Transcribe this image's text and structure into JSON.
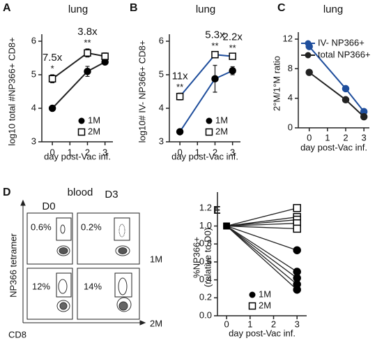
{
  "chart_data": [
    {
      "panel": "A",
      "type": "line",
      "title": "lung",
      "x_label": "day post-Vac inf.",
      "y_label": "log10 total #NP366+ CD8+",
      "x": [
        0,
        2,
        3
      ],
      "xlim": [
        -0.6,
        3.45
      ],
      "xticks": [
        0,
        1,
        2,
        3
      ],
      "ylim": [
        3,
        6
      ],
      "yticks": [
        3,
        4,
        5,
        6
      ],
      "legend": "lower right",
      "series": [
        {
          "name": "1M",
          "color": "#222222",
          "marker_color": "#000000",
          "marker": "circle",
          "filled": true,
          "values": [
            4.0,
            5.1,
            5.38
          ],
          "errors": [
            0.04,
            0.15,
            0.07
          ]
        },
        {
          "name": "2M",
          "color": "#222222",
          "marker_color": "#000000",
          "marker": "square",
          "filled": false,
          "values": [
            4.88,
            5.65,
            5.55
          ],
          "errors": [
            0.12,
            0.12,
            0.1
          ]
        }
      ],
      "annotations": [
        {
          "x": 0,
          "fold": "7.5x",
          "significance": "*"
        },
        {
          "x": 2,
          "fold": "3.8x",
          "significance": "**"
        }
      ]
    },
    {
      "panel": "B",
      "type": "line",
      "title": "lung",
      "x_label": "day post-Vac inf.",
      "y_label": "log10# IV- NP366+ CD8+",
      "x": [
        0,
        2,
        3
      ],
      "xlim": [
        -0.6,
        3.45
      ],
      "xticks": [
        0,
        1,
        2,
        3
      ],
      "ylim": [
        3,
        6
      ],
      "yticks": [
        3,
        4,
        5,
        6
      ],
      "legend": "lower right",
      "series": [
        {
          "name": "1M",
          "color": "#1f4e9c",
          "marker_color": "#000000",
          "marker": "circle",
          "filled": true,
          "values": [
            3.3,
            4.88,
            5.12
          ],
          "errors": [
            0.05,
            0.4,
            0.12
          ]
        },
        {
          "name": "2M",
          "color": "#1f4e9c",
          "marker_color": "#000000",
          "marker": "square",
          "filled": false,
          "values": [
            4.35,
            5.6,
            5.55
          ],
          "errors": [
            0.1,
            0.08,
            0.06
          ]
        }
      ],
      "annotations": [
        {
          "x": 0,
          "fold": "11x",
          "significance": "**"
        },
        {
          "x": 2,
          "fold": "5.3x",
          "significance": "**"
        },
        {
          "x": 3,
          "fold": "2.2x",
          "significance": "**"
        }
      ]
    },
    {
      "panel": "C",
      "type": "line",
      "title": "lung",
      "x_label": "day post-Vac inf.",
      "y_label": "2°M/1°M ratio",
      "x": [
        0,
        2,
        3
      ],
      "xlim": [
        -0.6,
        3.3
      ],
      "xticks": [
        0,
        1,
        2,
        3
      ],
      "ylim": [
        0,
        12
      ],
      "yticks": [
        0,
        4,
        8,
        12
      ],
      "legend": "upper right",
      "series": [
        {
          "name": "IV- NP366+",
          "color": "#1f4e9c",
          "marker_color": "#1f4e9c",
          "marker": "circle",
          "filled": true,
          "values": [
            11,
            5.3,
            2.2
          ]
        },
        {
          "name": "total NP366+",
          "color": "#222222",
          "marker_color": "#222222",
          "marker": "circle",
          "filled": true,
          "values": [
            7.5,
            3.8,
            1.5
          ]
        }
      ]
    },
    {
      "panel": "E",
      "type": "slope",
      "x_label": "day post-Vac inf.",
      "y_label": "%NP366+",
      "y_label_2": "(relative to D0)",
      "x": [
        0,
        3
      ],
      "xlim": [
        -0.39,
        3.41
      ],
      "xticks": [
        0,
        1,
        2,
        3
      ],
      "ylim": [
        0,
        1.3
      ],
      "yticks": [
        {
          "value": 0,
          "label": "0.0"
        },
        0.2,
        0.4,
        0.6,
        0.8,
        {
          "value": 1,
          "label": "1.0"
        },
        1.2
      ],
      "legend": "lower right",
      "series": [
        {
          "name": "1M",
          "color": "#000000",
          "marker": "circle",
          "filled": true,
          "values": [
            [
              1,
              0.73
            ],
            [
              1,
              0.49
            ],
            [
              1,
              0.42
            ],
            [
              1,
              0.35
            ],
            [
              1,
              0.29
            ]
          ]
        },
        {
          "name": "2M",
          "color": "#000000",
          "marker": "square",
          "filled": false,
          "values": [
            [
              1,
              1.2
            ],
            [
              1,
              1.1
            ],
            [
              1,
              1.07
            ],
            [
              1,
              1.03
            ],
            [
              1,
              0.97
            ]
          ]
        }
      ]
    }
  ],
  "flow_panel": {
    "label": "D",
    "title": "blood",
    "columns": [
      "D0",
      "D3"
    ],
    "rows": [
      "1M",
      "2M"
    ],
    "percentages": [
      [
        "0.6%",
        "0.2%"
      ],
      [
        "12%",
        "14%"
      ]
    ],
    "y_label": "NP366 tetramer",
    "x_label": "CD8"
  }
}
